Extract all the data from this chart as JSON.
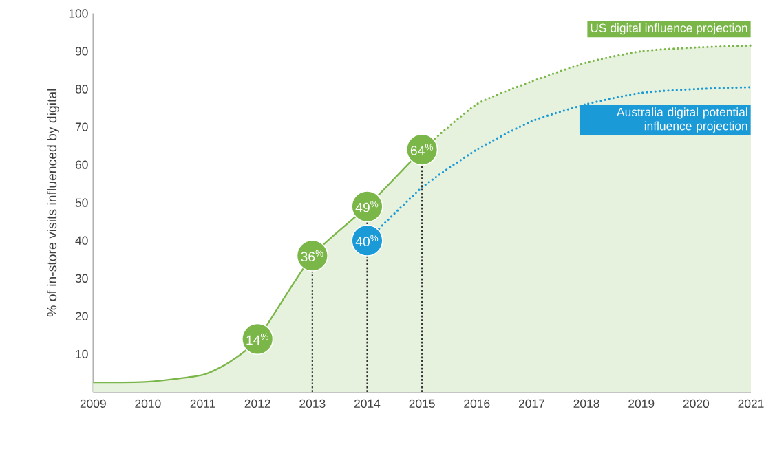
{
  "chart_data": {
    "type": "line",
    "ylabel": "% of in-store visits influenced by digital",
    "xlim": [
      2009,
      2021
    ],
    "ylim": [
      0,
      100
    ],
    "xticks": [
      2009,
      2010,
      2011,
      2012,
      2013,
      2014,
      2015,
      2016,
      2017,
      2018,
      2019,
      2020,
      2021
    ],
    "yticks": [
      10,
      20,
      30,
      40,
      50,
      60,
      70,
      80,
      90,
      100
    ],
    "series": [
      {
        "type": "area",
        "color": "#7ab648",
        "line_style": "solid",
        "x": [
          2009,
          2010,
          2011,
          2011.5,
          2012,
          2013,
          2014,
          2015
        ],
        "values": [
          2.5,
          2.7,
          4.5,
          8,
          14,
          36,
          49,
          64
        ],
        "value_labels": [
          null,
          null,
          null,
          null,
          "14$^{%}$",
          "36$^{%}$",
          "49$^{%}$",
          "64$^{%}$"
        ]
      },
      {
        "type": "area",
        "name": "US digital influence projection",
        "color": "#7ab648",
        "line_style": "dotted",
        "x": [
          2015,
          2016,
          2017,
          2018,
          2019,
          2020,
          2021
        ],
        "values": [
          64,
          76,
          82,
          87,
          90,
          91,
          91.5
        ]
      },
      {
        "name": "Australia digital potential influence projection",
        "color": "#1a9ad6",
        "line_style": "dotted",
        "x": [
          2014,
          2015,
          2016,
          2017,
          2018,
          2019,
          2020,
          2021
        ],
        "values": [
          40,
          54,
          64,
          71.5,
          76,
          79,
          80,
          80.5
        ],
        "value_labels": [
          "40$^{%}$",
          null,
          null,
          null,
          null,
          null,
          null,
          null
        ]
      }
    ],
    "ref_lines": [
      {
        "axis": "x",
        "value": 2013,
        "line_style": "dotted",
        "color": "#333333"
      },
      {
        "axis": "x",
        "value": 2014,
        "line_style": "dotted",
        "color": "#333333"
      },
      {
        "axis": "x",
        "value": 2015,
        "line_style": "dotted",
        "color": "#333333"
      }
    ]
  }
}
